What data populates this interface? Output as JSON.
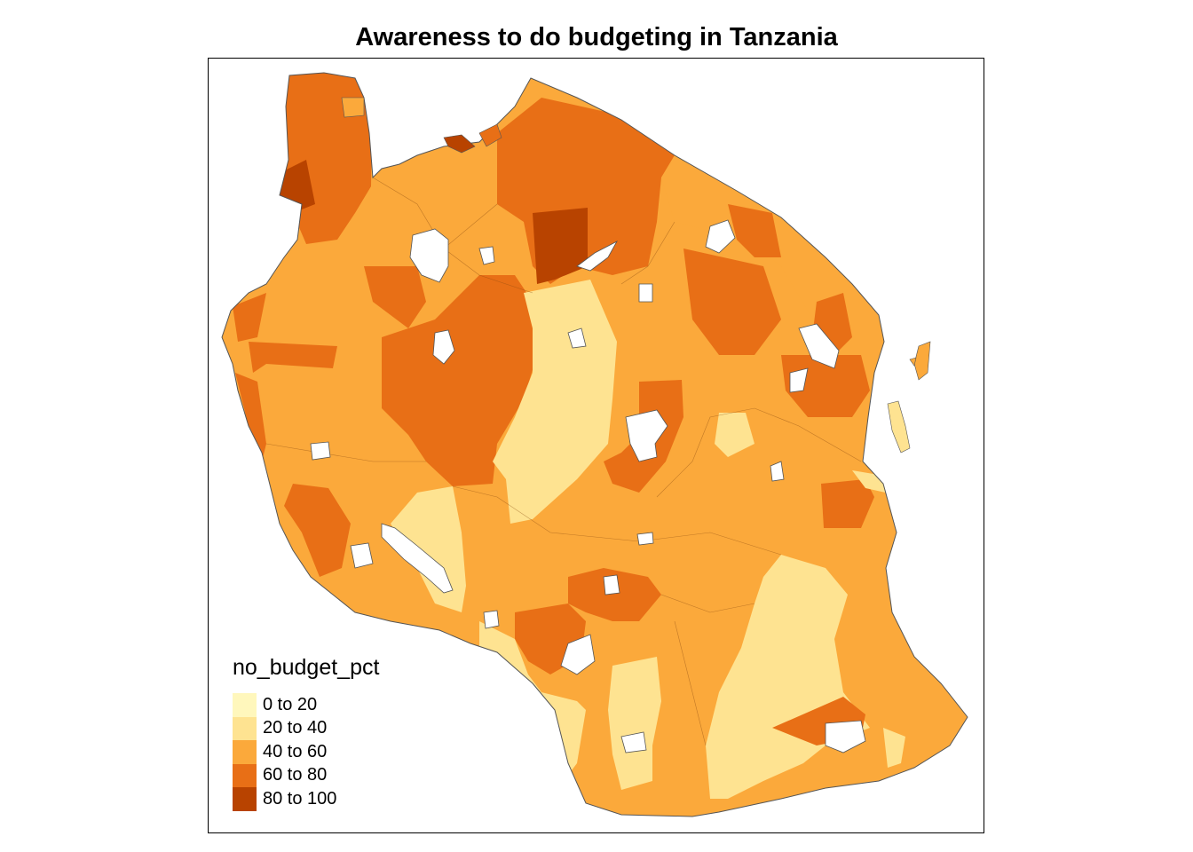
{
  "title": "Awareness to do budgeting in Tanzania",
  "legend": {
    "title": "no_budget_pct",
    "placement": "bottom-left",
    "classes": [
      {
        "label": "0 to 20",
        "color": "#fff7bc"
      },
      {
        "label": "20 to 40",
        "color": "#fee391"
      },
      {
        "label": "40 to 60",
        "color": "#fba93b"
      },
      {
        "label": "60 to 80",
        "color": "#e86f16"
      },
      {
        "label": "80 to 100",
        "color": "#b84300"
      }
    ]
  },
  "colors": {
    "border": "#555555",
    "water": "#ffffff",
    "frame": "#000000"
  }
}
